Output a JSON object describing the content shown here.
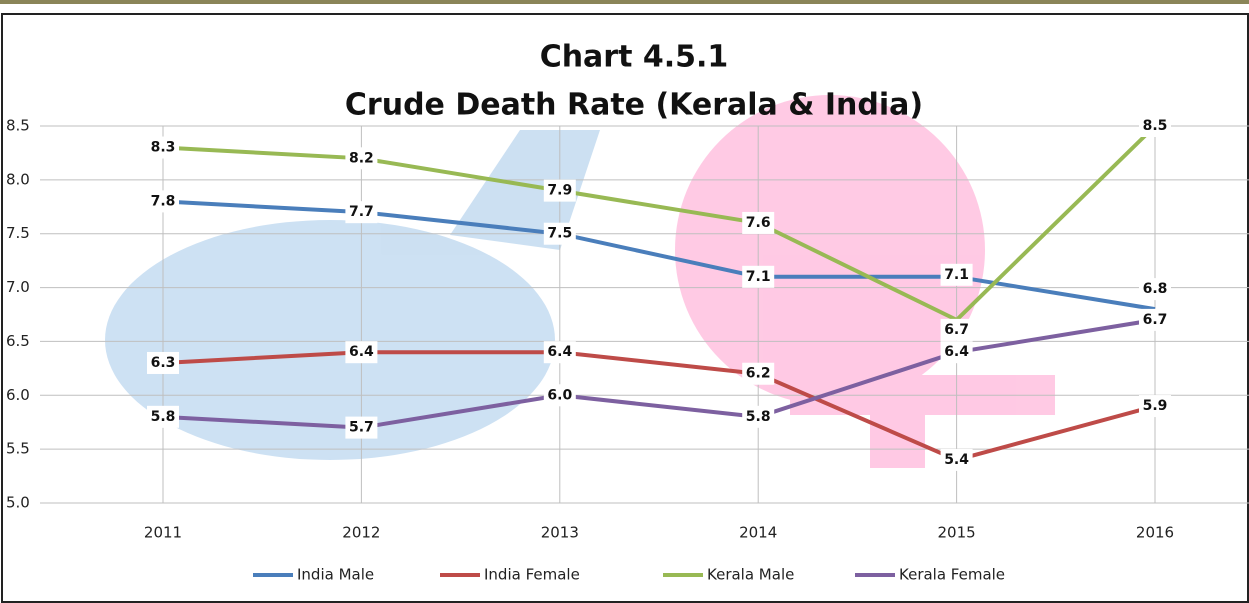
{
  "chart_data": {
    "type": "line",
    "title": "Chart 4.5.1",
    "subtitle": "Crude Death Rate (Kerala & India)",
    "categories": [
      "2011",
      "2012",
      "2013",
      "2014",
      "2015",
      "2016"
    ],
    "series": [
      {
        "name": "India Male",
        "color": "#4a7ebb",
        "values": [
          7.8,
          7.7,
          7.5,
          7.1,
          7.1,
          6.8
        ]
      },
      {
        "name": "India Female",
        "color": "#be4b48",
        "values": [
          6.3,
          6.4,
          6.4,
          6.2,
          5.4,
          5.9
        ]
      },
      {
        "name": "Kerala Male",
        "color": "#98b954",
        "values": [
          8.3,
          8.2,
          7.9,
          7.6,
          6.7,
          8.5
        ]
      },
      {
        "name": "Kerala Female",
        "color": "#7d60a0",
        "values": [
          5.8,
          5.7,
          6.0,
          5.8,
          6.4,
          6.7
        ],
        "value_labels": [
          "5.8",
          "5.7",
          "6.0",
          "5.8",
          "6.4",
          "6.7"
        ]
      }
    ],
    "ylim": [
      5.0,
      8.5
    ],
    "yticks": [
      {
        "value": 5,
        "label": "5.0"
      },
      5.5,
      {
        "value": 6,
        "label": "6.0"
      },
      6.5,
      {
        "value": 7,
        "label": "7.0"
      },
      7.5,
      {
        "value": 8,
        "label": "8.0"
      },
      8.5
    ],
    "grid": true,
    "legend": "bottom"
  }
}
